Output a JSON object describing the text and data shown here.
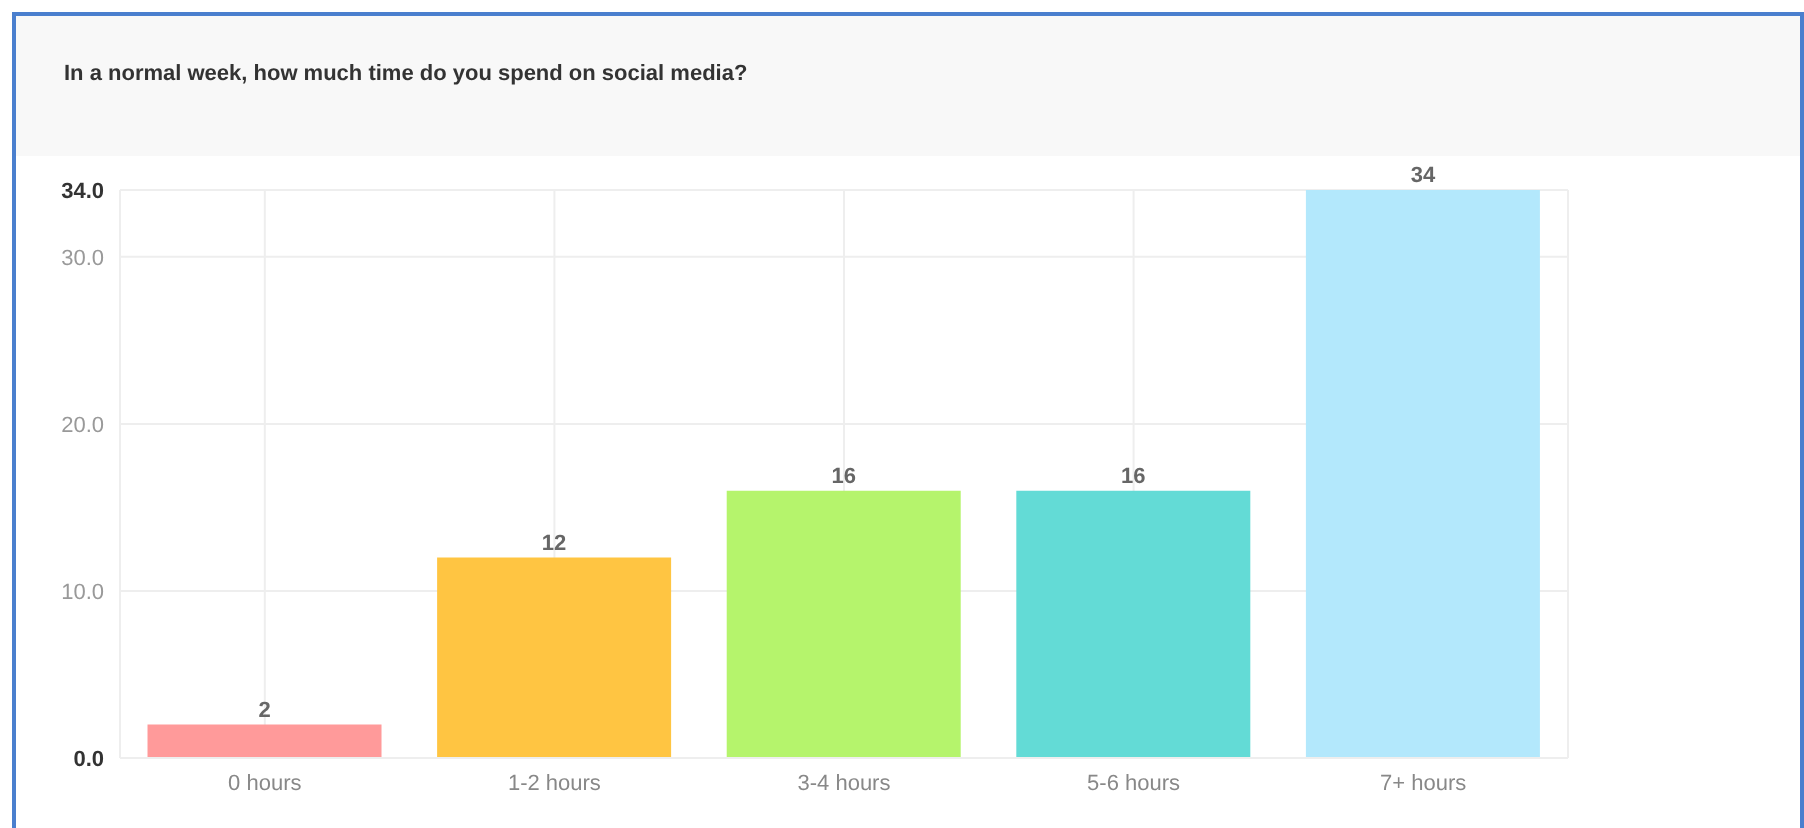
{
  "chart_data": {
    "type": "bar",
    "title": "In a normal week, how much time do you spend on social media?",
    "categories": [
      "0 hours",
      "1-2 hours",
      "3-4 hours",
      "5-6 hours",
      "7+ hours"
    ],
    "values": [
      2,
      12,
      16,
      16,
      34
    ],
    "colors": [
      "#ff9a9a",
      "#ffc542",
      "#b5f46c",
      "#63dbd6",
      "#b3e8fc"
    ],
    "ylim": [
      0,
      34
    ],
    "yticks": [
      {
        "value": 0,
        "label": "0.0"
      },
      {
        "value": 10,
        "label": "10.0"
      },
      {
        "value": 20,
        "label": "20.0"
      },
      {
        "value": 30,
        "label": "30.0"
      },
      {
        "value": 34,
        "label": "34.0"
      }
    ],
    "grid": true,
    "data_labels": true
  }
}
